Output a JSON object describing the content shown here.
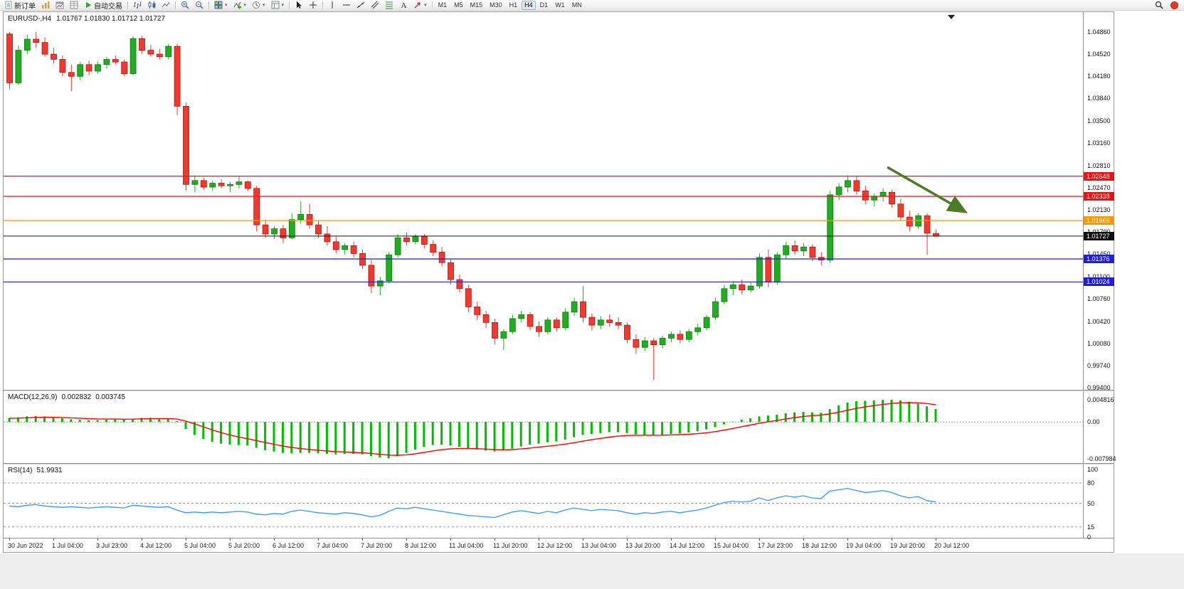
{
  "window": {
    "title_symbol": "EURUSD-,H4",
    "ohlc": "1.01767 1.01830 1.01712 1.01727"
  },
  "toolbar": {
    "buttons": [
      {
        "name": "new-order",
        "icon": "new-order",
        "label": "新订单"
      },
      {
        "name": "charts",
        "icon": "charts"
      },
      {
        "name": "profiles",
        "icon": "chart-window"
      },
      {
        "name": "market-watch",
        "icon": "market-watch"
      },
      {
        "name": "autotrading",
        "icon": "play",
        "label": "自动交易"
      },
      {
        "sep": true
      },
      {
        "name": "bar-chart-type",
        "icon": "bars"
      },
      {
        "name": "candle-chart-type",
        "icon": "candles"
      },
      {
        "name": "line-chart-type",
        "icon": "line"
      },
      {
        "sep": true
      },
      {
        "name": "zoom-in",
        "icon": "zoom-in"
      },
      {
        "name": "zoom-out",
        "icon": "zoom-out"
      },
      {
        "sep": true
      },
      {
        "name": "new-chart",
        "icon": "tile",
        "dropdown": true
      },
      {
        "name": "indicators",
        "icon": "indicator-plus",
        "dropdown": true
      },
      {
        "name": "periods",
        "icon": "clock",
        "dropdown": true
      },
      {
        "name": "templates",
        "icon": "template",
        "dropdown": true
      },
      {
        "sep": true
      },
      {
        "name": "cursor-tool",
        "icon": "cursor"
      },
      {
        "name": "crosshair-tool",
        "icon": "crosshair"
      },
      {
        "sep": true
      },
      {
        "name": "vertical-line-tool",
        "icon": "vline"
      },
      {
        "name": "horizontal-line-tool",
        "icon": "hline"
      },
      {
        "name": "trendline-tool",
        "icon": "trendline"
      },
      {
        "name": "channel-tool",
        "icon": "channel"
      },
      {
        "name": "fibonacci-tool",
        "icon": "fibo"
      },
      {
        "name": "text-tool",
        "icon": "text"
      },
      {
        "name": "arrows-tool",
        "icon": "arrow-obj",
        "dropdown": true
      },
      {
        "sep": true
      }
    ],
    "timeframes": [
      "M1",
      "M5",
      "M15",
      "M30",
      "H1",
      "H4",
      "D1",
      "W1",
      "MN"
    ],
    "active_timeframe": "H4"
  },
  "indicators": {
    "macd": {
      "name": "MACD(12,26,9)",
      "value_main": "0.002832",
      "value_signal": "0.003745"
    },
    "rsi": {
      "name": "RSI(14)",
      "value": "51.9931"
    }
  },
  "chart_data": {
    "type": "candlestick",
    "symbol": "EURUSD-",
    "timeframe": "H4",
    "style": {
      "bull_color": "#22ac22",
      "bull_border": "#0f7d0f",
      "bear_color": "#f03a30",
      "bear_border": "#b41510"
    },
    "price_axis_labels": [
      "1.04860",
      "1.04520",
      "1.04180",
      "1.03840",
      "1.03500",
      "1.03160",
      "1.02810",
      "1.02470",
      "1.02130",
      "1.01790",
      "1.01450",
      "1.01100",
      "1.00760",
      "1.00420",
      "1.00080",
      "0.99740",
      "0.99400"
    ],
    "x_labels": [
      "30 Jun 2022",
      "1 Jul 04:00",
      "3 Jul 23:00",
      "4 Jul 12:00",
      "5 Jul 04:00",
      "5 Jul 20:00",
      "6 Jul 12:00",
      "7 Jul 04:00",
      "7 Jul 20:00",
      "8 Jul 12:00",
      "11 Jul 04:00",
      "11 Jul 20:00",
      "12 Jul 12:00",
      "13 Jul 04:00",
      "13 Jul 20:00",
      "14 Jul 12:00",
      "15 Jul 04:00",
      "17 Jul 23:00",
      "18 Jul 12:00",
      "19 Jul 04:00",
      "19 Jul 20:00",
      "20 Jul 12:00"
    ],
    "levels": [
      {
        "price": 1.02648,
        "label": "1.02648",
        "color": "#e81414"
      },
      {
        "price": 1.02338,
        "label": "1.02338",
        "color": "#e81414"
      },
      {
        "price": 1.01966,
        "label": "1.01966",
        "color": "#f59a00"
      },
      {
        "price": 1.01376,
        "label": "1.01376",
        "color": "#1f1fd9"
      },
      {
        "price": 1.01024,
        "label": "1.01024",
        "color": "#1f1fd9"
      }
    ],
    "current_price": {
      "value": 1.01727,
      "label": "1.01727",
      "color": "#111111"
    },
    "annotation_arrow": {
      "color": "#4a7c26"
    },
    "candles": [
      [
        1.0483,
        1.0486,
        1.0398,
        1.0408
      ],
      [
        1.0408,
        1.0465,
        1.0405,
        1.0458
      ],
      [
        1.0458,
        1.0482,
        1.0452,
        1.0475
      ],
      [
        1.0475,
        1.0486,
        1.0462,
        1.047
      ],
      [
        1.047,
        1.0478,
        1.0448,
        1.0452
      ],
      [
        1.0452,
        1.0462,
        1.0438,
        1.0444
      ],
      [
        1.0444,
        1.045,
        1.0418,
        1.0424
      ],
      [
        1.0424,
        1.0436,
        1.0395,
        1.0418
      ],
      [
        1.0418,
        1.044,
        1.0412,
        1.0436
      ],
      [
        1.0436,
        1.0442,
        1.042,
        1.0426
      ],
      [
        1.0426,
        1.044,
        1.0422,
        1.0436
      ],
      [
        1.0436,
        1.0448,
        1.043,
        1.0444
      ],
      [
        1.0444,
        1.045,
        1.0436,
        1.044
      ],
      [
        1.044,
        1.0444,
        1.0418,
        1.0422
      ],
      [
        1.0422,
        1.048,
        1.042,
        1.0476
      ],
      [
        1.0476,
        1.048,
        1.0452,
        1.0458
      ],
      [
        1.0458,
        1.0466,
        1.0448,
        1.0452
      ],
      [
        1.0452,
        1.046,
        1.0444,
        1.0448
      ],
      [
        1.0448,
        1.0468,
        1.0444,
        1.0464
      ],
      [
        1.0464,
        1.0468,
        1.0358,
        1.0372
      ],
      [
        1.0372,
        1.0378,
        1.0242,
        1.0252
      ],
      [
        1.0252,
        1.0266,
        1.024,
        1.0258
      ],
      [
        1.0258,
        1.0262,
        1.0244,
        1.0248
      ],
      [
        1.0248,
        1.0258,
        1.0242,
        1.0254
      ],
      [
        1.0254,
        1.026,
        1.0246,
        1.025
      ],
      [
        1.025,
        1.0256,
        1.024,
        1.0252
      ],
      [
        1.0252,
        1.0264,
        1.0246,
        1.0256
      ],
      [
        1.0256,
        1.0258,
        1.0242,
        1.0246
      ],
      [
        1.0246,
        1.025,
        1.018,
        1.019
      ],
      [
        1.019,
        1.0198,
        1.017,
        1.0176
      ],
      [
        1.0176,
        1.0188,
        1.0168,
        1.0184
      ],
      [
        1.0184,
        1.019,
        1.0162,
        1.017
      ],
      [
        1.017,
        1.0208,
        1.0168,
        1.0198
      ],
      [
        1.0198,
        1.0226,
        1.0192,
        1.0206
      ],
      [
        1.0206,
        1.0222,
        1.0184,
        1.019
      ],
      [
        1.019,
        1.0196,
        1.017,
        1.0176
      ],
      [
        1.0176,
        1.0188,
        1.0158,
        1.0164
      ],
      [
        1.0164,
        1.0172,
        1.0146,
        1.0152
      ],
      [
        1.0152,
        1.0162,
        1.0144,
        1.0158
      ],
      [
        1.0158,
        1.0164,
        1.014,
        1.0146
      ],
      [
        1.0146,
        1.0152,
        1.0122,
        1.0128
      ],
      [
        1.0128,
        1.0136,
        1.0085,
        1.0096
      ],
      [
        1.0096,
        1.011,
        1.0082,
        1.0104
      ],
      [
        1.0104,
        1.0148,
        1.01,
        1.0144
      ],
      [
        1.0144,
        1.0176,
        1.014,
        1.017
      ],
      [
        1.017,
        1.0178,
        1.0158,
        1.0164
      ],
      [
        1.0164,
        1.0176,
        1.016,
        1.0172
      ],
      [
        1.0172,
        1.0176,
        1.0154,
        1.016
      ],
      [
        1.016,
        1.0166,
        1.0142,
        1.0148
      ],
      [
        1.0148,
        1.0156,
        1.0126,
        1.0132
      ],
      [
        1.0132,
        1.0138,
        1.0098,
        1.0106
      ],
      [
        1.0106,
        1.0114,
        1.0086,
        1.0092
      ],
      [
        1.0092,
        1.0098,
        1.0056,
        1.0064
      ],
      [
        1.0064,
        1.0072,
        1.0044,
        1.0052
      ],
      [
        1.0052,
        1.0058,
        1.0032,
        1.004
      ],
      [
        1.004,
        1.0046,
        1.0006,
        1.0016
      ],
      [
        1.0016,
        1.003,
        0.9998,
        1.0026
      ],
      [
        1.0026,
        1.0052,
        1.0022,
        1.0046
      ],
      [
        1.0046,
        1.0058,
        1.004,
        1.0052
      ],
      [
        1.0052,
        1.0056,
        1.0028,
        1.0034
      ],
      [
        1.0034,
        1.0042,
        1.0018,
        1.0026
      ],
      [
        1.0026,
        1.0048,
        1.0022,
        1.0044
      ],
      [
        1.0044,
        1.0048,
        1.0026,
        1.0032
      ],
      [
        1.0032,
        1.0062,
        1.0028,
        1.0056
      ],
      [
        1.0056,
        1.0078,
        1.005,
        1.0072
      ],
      [
        1.0072,
        1.0096,
        1.004,
        1.0048
      ],
      [
        1.0048,
        1.0054,
        1.0028,
        1.0036
      ],
      [
        1.0036,
        1.005,
        1.003,
        1.0044
      ],
      [
        1.0044,
        1.0052,
        1.0034,
        1.004
      ],
      [
        1.004,
        1.0048,
        1.003,
        1.0036
      ],
      [
        1.0036,
        1.004,
        1.0008,
        1.0014
      ],
      [
        1.0014,
        1.0022,
        0.9992,
        1.0002
      ],
      [
        1.0002,
        1.0018,
        0.9996,
        1.0012
      ],
      [
        1.0012,
        1.0016,
        0.9952,
        1.0006
      ],
      [
        1.0006,
        1.002,
        1.0,
        1.0016
      ],
      [
        1.0016,
        1.0026,
        1.001,
        1.0022
      ],
      [
        1.0022,
        1.0028,
        1.0008,
        1.0014
      ],
      [
        1.0014,
        1.003,
        1.001,
        1.0026
      ],
      [
        1.0026,
        1.0038,
        1.002,
        1.0032
      ],
      [
        1.0032,
        1.0052,
        1.0028,
        1.0048
      ],
      [
        1.0048,
        1.0078,
        1.0044,
        1.0072
      ],
      [
        1.0072,
        1.0098,
        1.0068,
        1.0092
      ],
      [
        1.0092,
        1.0104,
        1.0082,
        1.0098
      ],
      [
        1.0098,
        1.0106,
        1.0084,
        1.009
      ],
      [
        1.009,
        1.0102,
        1.0086,
        1.0096
      ],
      [
        1.0096,
        1.0146,
        1.0092,
        1.014
      ],
      [
        1.014,
        1.0152,
        1.0094,
        1.0102
      ],
      [
        1.0102,
        1.0148,
        1.0098,
        1.0144
      ],
      [
        1.0144,
        1.0164,
        1.0138,
        1.0158
      ],
      [
        1.0158,
        1.0166,
        1.0144,
        1.015
      ],
      [
        1.015,
        1.0162,
        1.0142,
        1.0156
      ],
      [
        1.0156,
        1.016,
        1.0134,
        1.014
      ],
      [
        1.014,
        1.0148,
        1.0128,
        1.0136
      ],
      [
        1.0136,
        1.0242,
        1.0132,
        1.0236
      ],
      [
        1.0236,
        1.0254,
        1.0228,
        1.0248
      ],
      [
        1.0248,
        1.0266,
        1.024,
        1.0258
      ],
      [
        1.0258,
        1.0264,
        1.0236,
        1.0242
      ],
      [
        1.0242,
        1.025,
        1.0222,
        1.0228
      ],
      [
        1.0228,
        1.0238,
        1.0218,
        1.0234
      ],
      [
        1.0234,
        1.0246,
        1.0226,
        1.024
      ],
      [
        1.024,
        1.0244,
        1.0216,
        1.0222
      ],
      [
        1.0222,
        1.023,
        1.0196,
        1.0202
      ],
      [
        1.0202,
        1.0212,
        1.018,
        1.0188
      ],
      [
        1.0188,
        1.0208,
        1.0184,
        1.0204
      ],
      [
        1.0204,
        1.0208,
        1.0144,
        1.0177
      ],
      [
        1.01767,
        1.0183,
        1.01712,
        1.01727
      ]
    ],
    "macd": {
      "histogram_color": "#00bd00",
      "signal_color": "#ff0000",
      "axis_labels": [
        "0.004816",
        "0.00",
        "-0.007984"
      ],
      "values": [
        0.0008,
        0.001,
        0.0012,
        0.0013,
        0.0012,
        0.001,
        0.0008,
        0.0006,
        0.0005,
        0.0004,
        0.0004,
        0.0005,
        0.0006,
        0.0005,
        0.0007,
        0.0009,
        0.0009,
        0.0008,
        0.0008,
        0.0002,
        -0.0015,
        -0.0028,
        -0.0037,
        -0.0043,
        -0.0047,
        -0.0049,
        -0.005,
        -0.0051,
        -0.0056,
        -0.0061,
        -0.0064,
        -0.0067,
        -0.0068,
        -0.0067,
        -0.0067,
        -0.0068,
        -0.0069,
        -0.007,
        -0.0069,
        -0.0069,
        -0.007,
        -0.0074,
        -0.0077,
        -0.0079,
        -0.0074,
        -0.0067,
        -0.006,
        -0.0054,
        -0.005,
        -0.0049,
        -0.0051,
        -0.0054,
        -0.0057,
        -0.006,
        -0.0062,
        -0.0064,
        -0.0062,
        -0.0058,
        -0.0053,
        -0.0049,
        -0.0047,
        -0.0044,
        -0.0042,
        -0.0038,
        -0.0033,
        -0.0028,
        -0.0026,
        -0.0024,
        -0.0022,
        -0.0022,
        -0.0024,
        -0.0027,
        -0.0028,
        -0.0029,
        -0.0028,
        -0.0026,
        -0.0025,
        -0.0023,
        -0.002,
        -0.0016,
        -0.0011,
        -0.0005,
        0.0001,
        0.0005,
        0.0008,
        0.0012,
        0.0014,
        0.0016,
        0.0019,
        0.0021,
        0.0022,
        0.0021,
        0.002,
        0.0028,
        0.0036,
        0.0042,
        0.0045,
        0.0046,
        0.0047,
        0.0048,
        0.004816,
        0.0047,
        0.0044,
        0.004,
        0.0034,
        0.002832
      ]
    },
    "rsi": {
      "line_color": "#3399ff",
      "axis_labels": [
        "100",
        "80",
        "50",
        "15",
        "0"
      ],
      "levels": [
        80,
        50,
        15
      ],
      "values": [
        46,
        45,
        47,
        48,
        46,
        45,
        44,
        45,
        44,
        43,
        44,
        45,
        44,
        43,
        47,
        46,
        45,
        44,
        45,
        40,
        36,
        37,
        36,
        37,
        36,
        37,
        38,
        37,
        34,
        33,
        35,
        34,
        38,
        40,
        38,
        36,
        35,
        34,
        36,
        35,
        33,
        30,
        32,
        38,
        43,
        42,
        44,
        42,
        40,
        38,
        36,
        34,
        32,
        31,
        30,
        29,
        33,
        37,
        39,
        37,
        35,
        38,
        36,
        40,
        43,
        41,
        39,
        41,
        40,
        39,
        36,
        34,
        36,
        35,
        37,
        38,
        36,
        38,
        40,
        43,
        47,
        51,
        53,
        52,
        53,
        58,
        54,
        58,
        61,
        59,
        61,
        58,
        57,
        68,
        70,
        72,
        69,
        66,
        67,
        69,
        66,
        61,
        58,
        60,
        54,
        52
      ]
    }
  }
}
